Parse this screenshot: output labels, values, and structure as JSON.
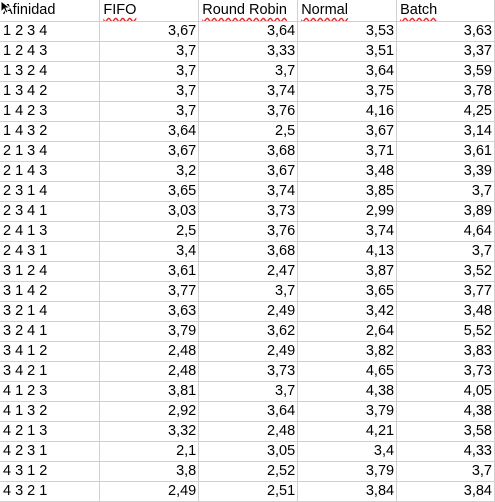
{
  "headers": [
    "Afinidad",
    "FIFO",
    "Round Robin",
    "Normal",
    "Batch"
  ],
  "rows": [
    [
      "1 2 3 4",
      "3,67",
      "3,64",
      "3,53",
      "3,63"
    ],
    [
      "1 2 4 3",
      "3,7",
      "3,33",
      "3,51",
      "3,37"
    ],
    [
      "1 3 2 4",
      "3,7",
      "3,7",
      "3,64",
      "3,59"
    ],
    [
      "1 3 4 2",
      "3,7",
      "3,74",
      "3,75",
      "3,78"
    ],
    [
      "1 4 2 3",
      "3,7",
      "3,76",
      "4,16",
      "4,25"
    ],
    [
      "1 4 3 2",
      "3,64",
      "2,5",
      "3,67",
      "3,14"
    ],
    [
      "2 1 3 4",
      "3,67",
      "3,68",
      "3,71",
      "3,61"
    ],
    [
      "2 1 4 3",
      "3,2",
      "3,67",
      "3,48",
      "3,39"
    ],
    [
      "2 3 1 4",
      "3,65",
      "3,74",
      "3,85",
      "3,7"
    ],
    [
      "2 3 4 1",
      "3,03",
      "3,73",
      "2,99",
      "3,89"
    ],
    [
      "2 4 1 3",
      "2,5",
      "3,76",
      "3,74",
      "4,64"
    ],
    [
      "2 4 3 1",
      "3,4",
      "3,68",
      "4,13",
      "3,7"
    ],
    [
      "3 1 2 4",
      "3,61",
      "2,47",
      "3,87",
      "3,52"
    ],
    [
      "3 1 4 2",
      "3,77",
      "3,7",
      "3,65",
      "3,77"
    ],
    [
      "3 2 1 4",
      "3,63",
      "2,49",
      "3,42",
      "3,48"
    ],
    [
      "3 2 4 1",
      "3,79",
      "3,62",
      "2,64",
      "5,52"
    ],
    [
      "3 4 1 2",
      "2,48",
      "2,49",
      "3,82",
      "3,83"
    ],
    [
      "3 4 2 1",
      "2,48",
      "3,73",
      "4,65",
      "3,73"
    ],
    [
      "4 1 2 3",
      "3,81",
      "3,7",
      "4,38",
      "4,05"
    ],
    [
      "4 1 3 2",
      "2,92",
      "3,64",
      "3,79",
      "4,38"
    ],
    [
      "4 2 1 3",
      "3,32",
      "2,48",
      "4,21",
      "3,58"
    ],
    [
      "4 2 3 1",
      "2,1",
      "3,05",
      "3,4",
      "4,33"
    ],
    [
      "4 3 1 2",
      "3,8",
      "2,52",
      "3,79",
      "3,7"
    ],
    [
      "4 3 2 1",
      "2,49",
      "2,51",
      "3,84",
      "3,84"
    ]
  ]
}
